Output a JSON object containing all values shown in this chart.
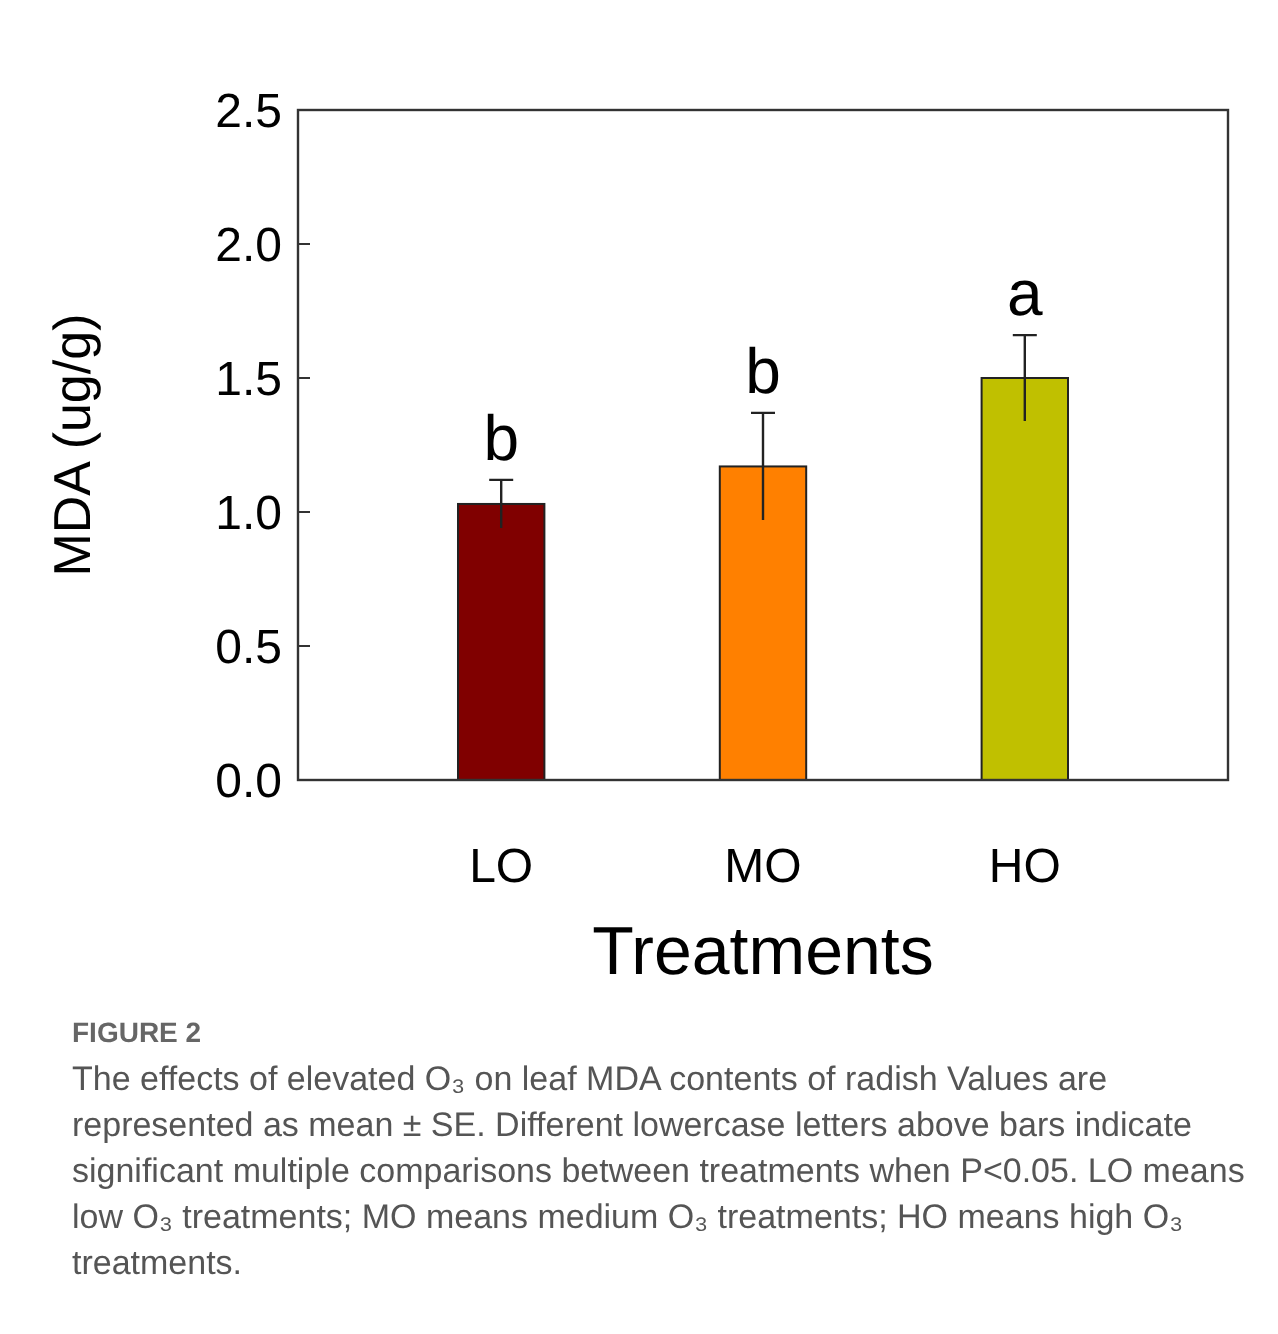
{
  "chart_data": {
    "type": "bar",
    "xlabel": "Treatments",
    "ylabel": "MDA (ug/g)",
    "categories": [
      "LO",
      "MO",
      "HO"
    ],
    "values": [
      1.03,
      1.17,
      1.5
    ],
    "errors": [
      0.09,
      0.2,
      0.16
    ],
    "colors": [
      "#800000",
      "#ff8000",
      "#c0c000"
    ],
    "ylim": [
      0,
      2.5
    ],
    "yticks": [
      {
        "value": 0,
        "label": "0.0"
      },
      {
        "value": 0.5,
        "label": "0.5"
      },
      {
        "value": 1,
        "label": "1.0"
      },
      {
        "value": 1.5,
        "label": "1.5"
      },
      {
        "value": 2,
        "label": "2.0"
      },
      {
        "value": 2.5,
        "label": "2.5"
      }
    ],
    "grid": false,
    "annotations": [
      "b",
      "b",
      "a",
      "FIGURE 2",
      "The effects of elevated O₃ on leaf MDA contents of radish Values are represented as mean ± SE. Different lowercase letters above bars indicate significant multiple comparisons between treatments when P<0.05. LO means low O₃ treatments; MO means medium O₃ treatments; HO means high O₃ treatments."
    ]
  }
}
